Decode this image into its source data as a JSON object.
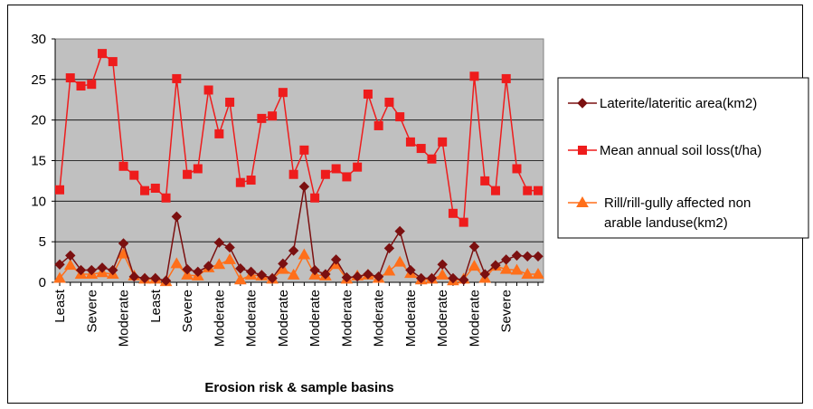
{
  "chart_data": {
    "type": "line",
    "title": "",
    "xlabel": "Erosion risk & sample basins",
    "ylabel": "",
    "ylim": [
      0,
      30
    ],
    "yticks": [
      0,
      5,
      10,
      15,
      20,
      25,
      30
    ],
    "grid": true,
    "legend_position": "right",
    "n_points": 46,
    "x_tick_labels": [
      {
        "index": 0,
        "label": "Least"
      },
      {
        "index": 3,
        "label": "Severe"
      },
      {
        "index": 6,
        "label": "Moderate"
      },
      {
        "index": 9,
        "label": "Least"
      },
      {
        "index": 12,
        "label": "Severe"
      },
      {
        "index": 15,
        "label": "Moderate"
      },
      {
        "index": 18,
        "label": "Moderate"
      },
      {
        "index": 21,
        "label": "Moderate"
      },
      {
        "index": 24,
        "label": "Moderate"
      },
      {
        "index": 27,
        "label": "Moderate"
      },
      {
        "index": 30,
        "label": "Moderate"
      },
      {
        "index": 33,
        "label": "Moderate"
      },
      {
        "index": 36,
        "label": "Moderate"
      },
      {
        "index": 39,
        "label": "Moderate"
      },
      {
        "index": 42,
        "label": "Severe"
      }
    ],
    "series": [
      {
        "name": "Laterite/lateritic area(km2)",
        "color": "#7b1010",
        "marker": "diamond",
        "values": [
          2.2,
          3.3,
          1.5,
          1.5,
          1.8,
          1.5,
          4.8,
          0.7,
          0.5,
          0.5,
          0.2,
          8.1,
          1.6,
          1.3,
          2.0,
          4.9,
          4.3,
          1.7,
          1.3,
          0.9,
          0.5,
          2.3,
          3.9,
          11.8,
          1.5,
          1.0,
          2.8,
          0.6,
          0.7,
          1.0,
          0.7,
          4.2,
          6.3,
          1.5,
          0.5,
          0.5,
          2.2,
          0.5,
          0.3,
          4.4,
          1.0,
          2.1,
          2.8,
          3.3,
          3.2,
          3.2
        ]
      },
      {
        "name": "Mean annual soil loss(t/ha)",
        "color": "#ee1c1c",
        "marker": "square",
        "values": [
          11.4,
          25.2,
          24.2,
          24.4,
          28.2,
          27.2,
          14.3,
          13.2,
          11.3,
          11.6,
          10.4,
          25.1,
          13.3,
          14.0,
          23.7,
          18.3,
          22.2,
          12.3,
          12.6,
          20.2,
          20.5,
          23.4,
          13.3,
          16.3,
          10.4,
          13.3,
          14.0,
          13.0,
          14.2,
          23.2,
          19.3,
          22.2,
          20.4,
          17.3,
          16.5,
          15.2,
          17.3,
          8.5,
          7.4,
          25.4,
          12.5,
          11.3,
          25.1,
          14.0,
          11.3,
          11.3
        ]
      },
      {
        "name": "Rill/rill-gully affected non arable landuse(km2)",
        "color": "#ff6f1a",
        "marker": "triangle",
        "values": [
          0.5,
          2.1,
          1.0,
          1.0,
          1.2,
          1.0,
          3.5,
          0.8,
          0.4,
          0.4,
          0.1,
          2.3,
          0.9,
          0.8,
          1.8,
          2.2,
          2.8,
          0.3,
          0.9,
          0.8,
          0.4,
          1.6,
          0.9,
          3.4,
          0.9,
          0.8,
          2.2,
          0.4,
          0.8,
          0.9,
          0.5,
          1.4,
          2.5,
          1.1,
          0.3,
          0.4,
          0.9,
          0.2,
          0.4,
          2.0,
          0.5,
          2.0,
          1.6,
          1.5,
          1.0,
          1.0
        ]
      }
    ]
  }
}
